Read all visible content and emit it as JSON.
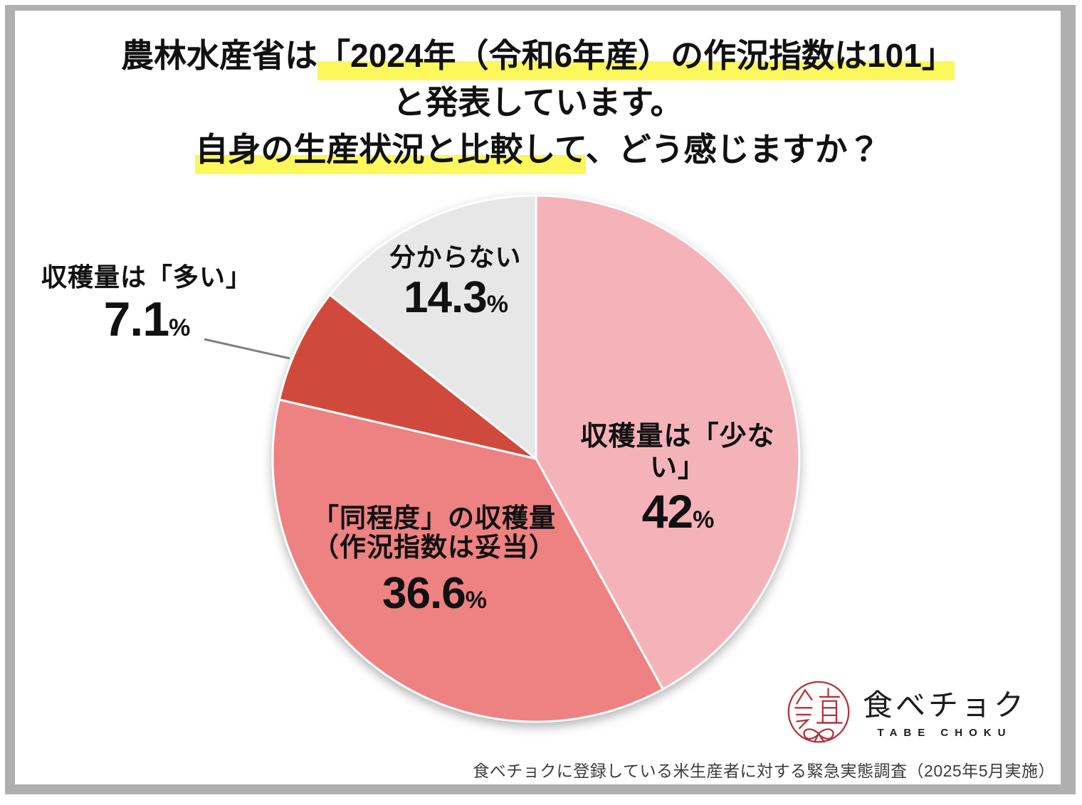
{
  "page": {
    "frame_color": "#b0afaf",
    "card_color": "#ffffff"
  },
  "title": {
    "line1_prefix": "農林水産省は",
    "line1_highlight": "「2024年（令和6年産）の作況指数は101」",
    "line2": "と発表しています。",
    "line3_highlight": "自身の生産状況と比較して",
    "line3_suffix": "、どう感じますか？",
    "highlight_color": "#fcf75a"
  },
  "chart_data": {
    "type": "pie",
    "question": "農林水産省は「2024年（令和6年産）の作況指数は101」と発表しています。自身の生産状況と比較して、どう感じますか？",
    "unit": "%",
    "direction": "clockwise",
    "start_angle_deg": 0,
    "slices": [
      {
        "label": "収穫量は「少ない」",
        "value": 42,
        "display": "42",
        "color": "#f4b3b8",
        "label_position": "inside"
      },
      {
        "label": "「同程度」の収穫量（作況指数は妥当）",
        "label_line1": "「同程度」の収穫量",
        "label_line2": "（作況指数は妥当）",
        "value": 36.6,
        "display": "36.6",
        "color": "#ee8181",
        "label_position": "inside"
      },
      {
        "label": "収穫量は「多い」",
        "value": 7.1,
        "display": "7.1",
        "color": "#cf4a3c",
        "label_position": "outside-left"
      },
      {
        "label": "分からない",
        "value": 14.3,
        "display": "14.3",
        "color": "#e8e7e8",
        "label_position": "inside"
      }
    ]
  },
  "footer": {
    "logo_name": "食べチョク",
    "logo_subname": "TABE CHOKU",
    "source": "食べチョクに登録している米生産者に対する緊急実態調査（2025年5月実施）"
  }
}
